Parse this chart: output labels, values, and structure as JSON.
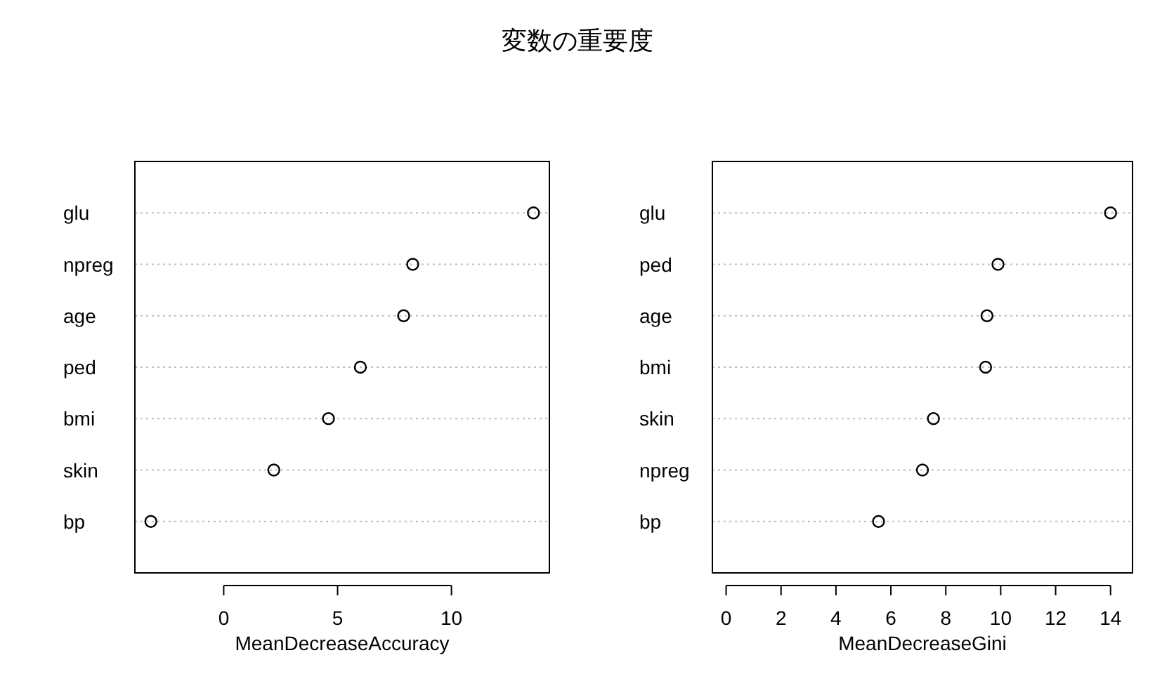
{
  "chart_data": [
    {
      "type": "scatter",
      "title": "変数の重要度",
      "orientation": "horizontal",
      "xlabel": "MeanDecreaseAccuracy",
      "categories": [
        "glu",
        "npreg",
        "age",
        "ped",
        "bmi",
        "skin",
        "bp"
      ],
      "series": [
        {
          "color": "#000000",
          "values": [
            13.6,
            8.3,
            7.9,
            6.0,
            4.6,
            2.2,
            -3.2
          ]
        }
      ],
      "xlim": [
        -3.9,
        14.3
      ],
      "xticks": [
        0,
        5,
        10
      ],
      "grid": "y",
      "marker": "circle"
    },
    {
      "type": "scatter",
      "orientation": "horizontal",
      "xlabel": "MeanDecreaseGini",
      "categories": [
        "glu",
        "ped",
        "age",
        "bmi",
        "skin",
        "npreg",
        "bp"
      ],
      "series": [
        {
          "color": "#000000",
          "values": [
            14.0,
            9.9,
            9.5,
            9.45,
            7.55,
            7.15,
            5.55
          ]
        }
      ],
      "xlim": [
        -0.5,
        14.8
      ],
      "xticks": [
        0,
        2,
        4,
        6,
        8,
        10,
        12,
        14
      ],
      "grid": "y",
      "marker": "circle"
    }
  ]
}
